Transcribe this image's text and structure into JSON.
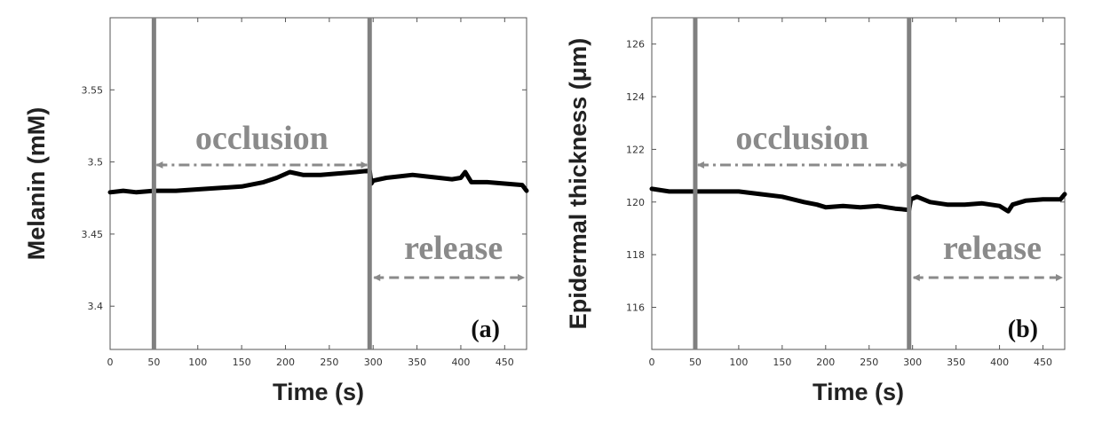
{
  "chart_data": [
    {
      "type": "line",
      "panel_label": "(a)",
      "xlabel": "Time (s)",
      "ylabel": "Melanin (mM)",
      "xlim": [
        0,
        475
      ],
      "ylim": [
        3.37,
        3.6
      ],
      "x_ticks": [
        0,
        50,
        100,
        150,
        200,
        250,
        300,
        350,
        400,
        450
      ],
      "y_ticks": [
        3.4,
        3.45,
        3.5,
        3.55
      ],
      "y_tick_labels": [
        "3.4",
        "3.45",
        "3.5",
        "3.55"
      ],
      "grid": false,
      "line_color": "#000000",
      "series": [
        {
          "x": [
            0,
            15,
            30,
            50,
            75,
            100,
            125,
            150,
            175,
            190,
            205,
            220,
            240,
            260,
            280,
            296,
            298,
            300,
            315,
            330,
            345,
            360,
            375,
            390,
            400,
            405,
            412,
            430,
            450,
            470,
            475
          ],
          "y": [
            3.479,
            3.48,
            3.479,
            3.48,
            3.48,
            3.481,
            3.482,
            3.483,
            3.486,
            3.489,
            3.493,
            3.491,
            3.491,
            3.492,
            3.493,
            3.494,
            3.485,
            3.487,
            3.489,
            3.49,
            3.491,
            3.49,
            3.489,
            3.488,
            3.489,
            3.493,
            3.486,
            3.486,
            3.485,
            3.484,
            3.48
          ]
        }
      ],
      "vlines": [
        {
          "x": 50,
          "color": "#808080"
        },
        {
          "x": 296,
          "color": "#808080"
        }
      ],
      "annotations": [
        {
          "text": "occlusion",
          "x_from": 50,
          "x_to": 296,
          "arrow_style": "dash-dot",
          "color": "#8a8a8a"
        },
        {
          "text": "release",
          "x_from": 296,
          "x_to": 475,
          "arrow_style": "dashed",
          "color": "#8a8a8a"
        }
      ]
    },
    {
      "type": "line",
      "panel_label": "(b)",
      "xlabel": "Time (s)",
      "ylabel": "Epidermal thickness (μm)",
      "xlim": [
        0,
        475
      ],
      "ylim": [
        114.4,
        127
      ],
      "x_ticks": [
        0,
        50,
        100,
        150,
        200,
        250,
        300,
        350,
        400,
        450
      ],
      "y_ticks": [
        116,
        118,
        120,
        122,
        124,
        126
      ],
      "y_tick_labels": [
        "116",
        "118",
        "120",
        "122",
        "124",
        "126"
      ],
      "grid": false,
      "line_color": "#000000",
      "series": [
        {
          "x": [
            0,
            20,
            40,
            50,
            75,
            100,
            125,
            150,
            175,
            190,
            200,
            220,
            240,
            260,
            280,
            296,
            298,
            305,
            320,
            340,
            360,
            380,
            400,
            410,
            415,
            430,
            450,
            470,
            475
          ],
          "y": [
            120.5,
            120.4,
            120.4,
            120.4,
            120.4,
            120.4,
            120.3,
            120.2,
            120.0,
            119.9,
            119.8,
            119.85,
            119.8,
            119.85,
            119.75,
            119.7,
            120.1,
            120.2,
            120.0,
            119.9,
            119.9,
            119.95,
            119.85,
            119.65,
            119.9,
            120.05,
            120.1,
            120.1,
            120.3
          ]
        }
      ],
      "vlines": [
        {
          "x": 50,
          "color": "#808080"
        },
        {
          "x": 296,
          "color": "#808080"
        }
      ],
      "annotations": [
        {
          "text": "occlusion",
          "x_from": 50,
          "x_to": 296,
          "arrow_style": "dash-dot",
          "color": "#8a8a8a"
        },
        {
          "text": "release",
          "x_from": 296,
          "x_to": 475,
          "arrow_style": "dashed",
          "color": "#8a8a8a"
        }
      ]
    }
  ]
}
